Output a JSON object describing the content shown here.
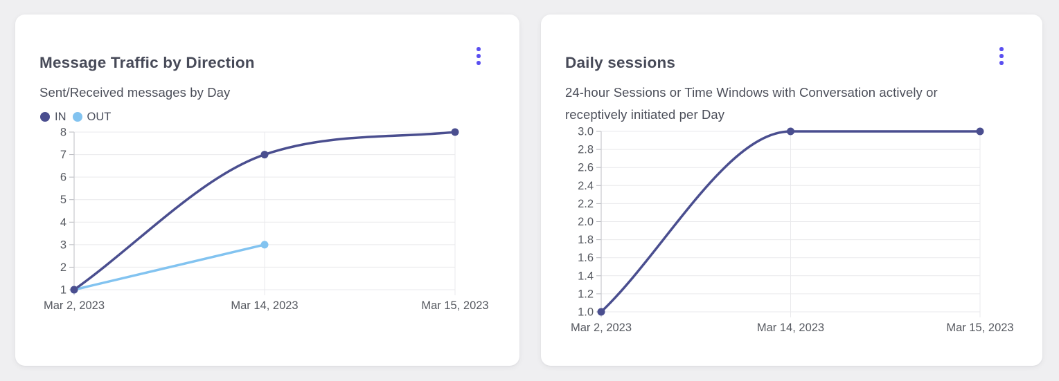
{
  "page": {
    "background": "#efeff1"
  },
  "cards": [
    {
      "title": "Message Traffic by Direction",
      "subtitle": "Sent/Received messages by Day",
      "menu_icon": "kebab-menu",
      "legend": [
        {
          "label": "IN",
          "color": "#4a4e8f"
        },
        {
          "label": "OUT",
          "color": "#82c3f0"
        }
      ]
    },
    {
      "title": "Daily sessions",
      "subtitle": "24-hour Sessions or Time Windows with Conversation actively or receptively initiated per Day",
      "menu_icon": "kebab-menu"
    }
  ],
  "colors": {
    "accent": "#5a4ff0",
    "series_in": "#4a4e8f",
    "series_out": "#82c3f0",
    "grid": "#e9e9ec",
    "axis_line": "#cbccd1",
    "tick_mark": "#b7b8be",
    "title_text": "#474a58",
    "subtitle_text": "#4b4e59",
    "axis_text": "#55585f",
    "card_bg": "#ffffff",
    "page_bg": "#efeff1"
  },
  "chart_data": [
    {
      "type": "line",
      "title": "Message Traffic by Direction",
      "subtitle": "Sent/Received messages by Day",
      "categories": [
        "Mar 2, 2023",
        "Mar 14, 2023",
        "Mar 15, 2023"
      ],
      "series": [
        {
          "name": "IN",
          "color": "#4a4e8f",
          "values": [
            1,
            7,
            8
          ]
        },
        {
          "name": "OUT",
          "color": "#82c3f0",
          "values": [
            1,
            3,
            null
          ]
        }
      ],
      "y_ticks": [
        "1",
        "2",
        "3",
        "4",
        "5",
        "6",
        "7",
        "8"
      ],
      "ylim": [
        1,
        8
      ],
      "grid": true,
      "curve": "monotone",
      "legend_position": "top-left"
    },
    {
      "type": "line",
      "title": "Daily sessions",
      "subtitle": "24-hour Sessions or Time Windows with Conversation actively or receptively initiated per Day",
      "categories": [
        "Mar 2, 2023",
        "Mar 14, 2023",
        "Mar 15, 2023"
      ],
      "series": [
        {
          "name": "Daily sessions",
          "color": "#4a4e8f",
          "values": [
            1,
            3,
            3
          ]
        }
      ],
      "y_ticks": [
        "1.0",
        "1.2",
        "1.4",
        "1.6",
        "1.8",
        "2.0",
        "2.2",
        "2.4",
        "2.6",
        "2.8",
        "3.0"
      ],
      "ylim": [
        1,
        3
      ],
      "grid": true,
      "curve": "monotone",
      "legend_position": "none"
    }
  ]
}
